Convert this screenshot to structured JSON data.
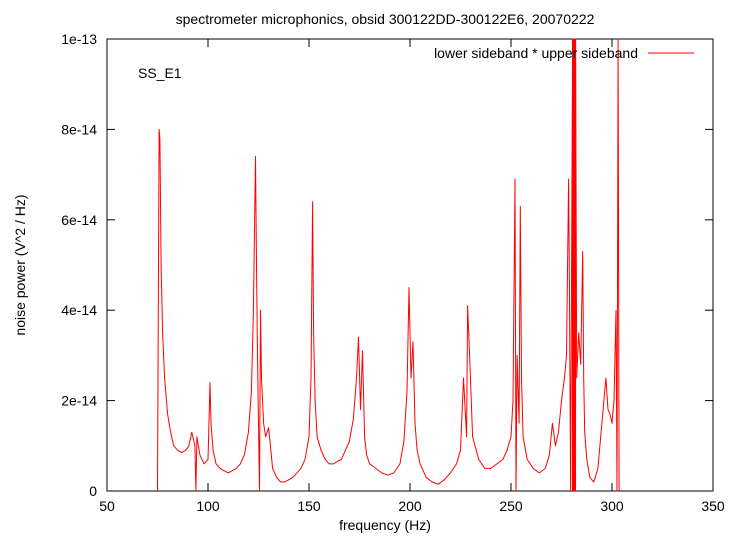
{
  "chart_data": {
    "type": "line",
    "title": "spectrometer microphonics, obsid 300122DD-300122E6, 20070222",
    "xlabel": "frequency (Hz)",
    "ylabel": "noise power (V^2 / Hz)",
    "annotation": "SS_E1",
    "xlim": [
      50,
      350
    ],
    "ylim": [
      0,
      1e-13
    ],
    "xticks": [
      50,
      100,
      150,
      200,
      250,
      300,
      350
    ],
    "xtick_labels": [
      "50",
      "100",
      "150",
      "200",
      "250",
      "300",
      "350"
    ],
    "yticks": [
      0,
      2e-14,
      4e-14,
      6e-14,
      8e-14,
      1e-13
    ],
    "ytick_labels": [
      "0",
      "2e-14",
      "4e-14",
      "6e-14",
      "8e-14",
      "1e-13"
    ],
    "grid": false,
    "legend_position": "top-right",
    "series": [
      {
        "name": "lower sideband * upper sideband",
        "color": "#ff0000",
        "x": [
          75,
          75.8,
          76.2,
          76.8,
          77.5,
          78.5,
          80,
          81.5,
          83,
          85,
          87,
          89,
          90.5,
          92,
          93.5,
          94,
          94.5,
          96,
          98,
          100,
          101,
          101.5,
          102.5,
          104,
          106,
          108,
          110,
          112,
          114,
          116,
          118,
          120,
          121.5,
          122.5,
          123.5,
          124,
          124.5,
          125.5,
          126,
          126.5,
          127.5,
          128.5,
          130,
          132,
          134,
          136,
          138,
          140,
          142,
          144,
          146,
          148,
          150,
          151,
          151.8,
          152.3,
          153,
          154,
          156,
          158,
          160,
          162,
          164,
          166,
          168,
          170,
          172,
          173.5,
          174.5,
          175.5,
          176.5,
          177.5,
          178.5,
          180,
          183,
          186,
          189,
          192,
          195,
          197,
          198.5,
          199.5,
          200.5,
          201.5,
          202.5,
          203.5,
          205,
          208,
          211,
          214,
          217,
          220,
          223,
          225,
          226.5,
          228,
          228.5,
          229.5,
          231,
          234,
          237,
          240,
          243,
          246,
          248,
          250,
          251,
          252,
          252.5,
          253,
          254,
          254.6,
          255.2,
          256,
          258,
          261,
          264,
          267,
          269,
          270.5,
          272,
          273.5,
          275,
          276.5,
          277.5,
          278.5,
          279,
          279.5,
          280.5,
          281,
          281.5,
          282,
          282.5,
          283.5,
          284.5,
          285.5,
          286,
          286.5,
          287.5,
          289,
          291,
          293,
          295,
          297,
          298,
          299,
          300,
          301,
          302,
          302.5,
          303,
          303.5
        ],
        "y": [
          0,
          8e-14,
          7.8e-14,
          5e-14,
          3.5e-14,
          2.5e-14,
          1.7e-14,
          1.3e-14,
          1e-14,
          9e-15,
          8.5e-15,
          9e-15,
          1e-14,
          1.3e-14,
          1e-14,
          0,
          1.2e-14,
          8e-15,
          6e-15,
          7e-15,
          2.4e-14,
          1.5e-14,
          9e-15,
          6e-15,
          5e-15,
          4.5e-15,
          4e-15,
          4.5e-15,
          5e-15,
          6e-15,
          8e-15,
          1.3e-14,
          2.2e-14,
          4e-14,
          7.4e-14,
          5e-14,
          3e-14,
          0,
          4e-14,
          2.5e-14,
          1.5e-14,
          1.2e-14,
          1.4e-14,
          5e-15,
          3e-15,
          2e-15,
          2e-15,
          2.5e-15,
          3e-15,
          4e-15,
          5e-15,
          7e-15,
          1.2e-14,
          2.5e-14,
          6.4e-14,
          3.5e-14,
          2e-14,
          1.2e-14,
          9e-15,
          7e-15,
          6e-15,
          6e-15,
          6.5e-15,
          7e-15,
          9e-15,
          1.1e-14,
          1.6e-14,
          2.5e-14,
          3.4e-14,
          1.8e-14,
          3.1e-14,
          1.2e-14,
          8e-15,
          6e-15,
          5e-15,
          4e-15,
          3.5e-15,
          4e-15,
          6e-15,
          1.1e-14,
          2.2e-14,
          4.5e-14,
          2.5e-14,
          3.3e-14,
          1.5e-14,
          9e-15,
          6e-15,
          3e-15,
          2e-15,
          1.5e-15,
          2.5e-15,
          4e-15,
          6e-15,
          9e-15,
          2.5e-14,
          1.2e-14,
          4.1e-14,
          3e-14,
          1.2e-14,
          7e-15,
          5e-15,
          5e-15,
          6e-15,
          7e-15,
          9e-15,
          1.2e-14,
          2e-14,
          6.9e-14,
          0,
          3e-14,
          1.5e-14,
          6.3e-14,
          2.5e-14,
          1.2e-14,
          7e-15,
          5e-15,
          4e-15,
          5e-15,
          8e-15,
          1.5e-14,
          1e-14,
          1.3e-14,
          2e-14,
          2.5e-14,
          3e-14,
          6.9e-14,
          4e-14,
          0,
          1e-13,
          1e-13,
          1e-13,
          1e-13,
          2.5e-14,
          3.5e-14,
          2.8e-14,
          5.3e-14,
          2.5e-14,
          1.3e-14,
          7e-15,
          3e-15,
          2e-15,
          5e-15,
          1.5e-14,
          2.5e-14,
          1.8e-14,
          1.7e-14,
          1.5e-14,
          2e-14,
          4e-14,
          0,
          1e-13,
          0
        ]
      }
    ]
  }
}
